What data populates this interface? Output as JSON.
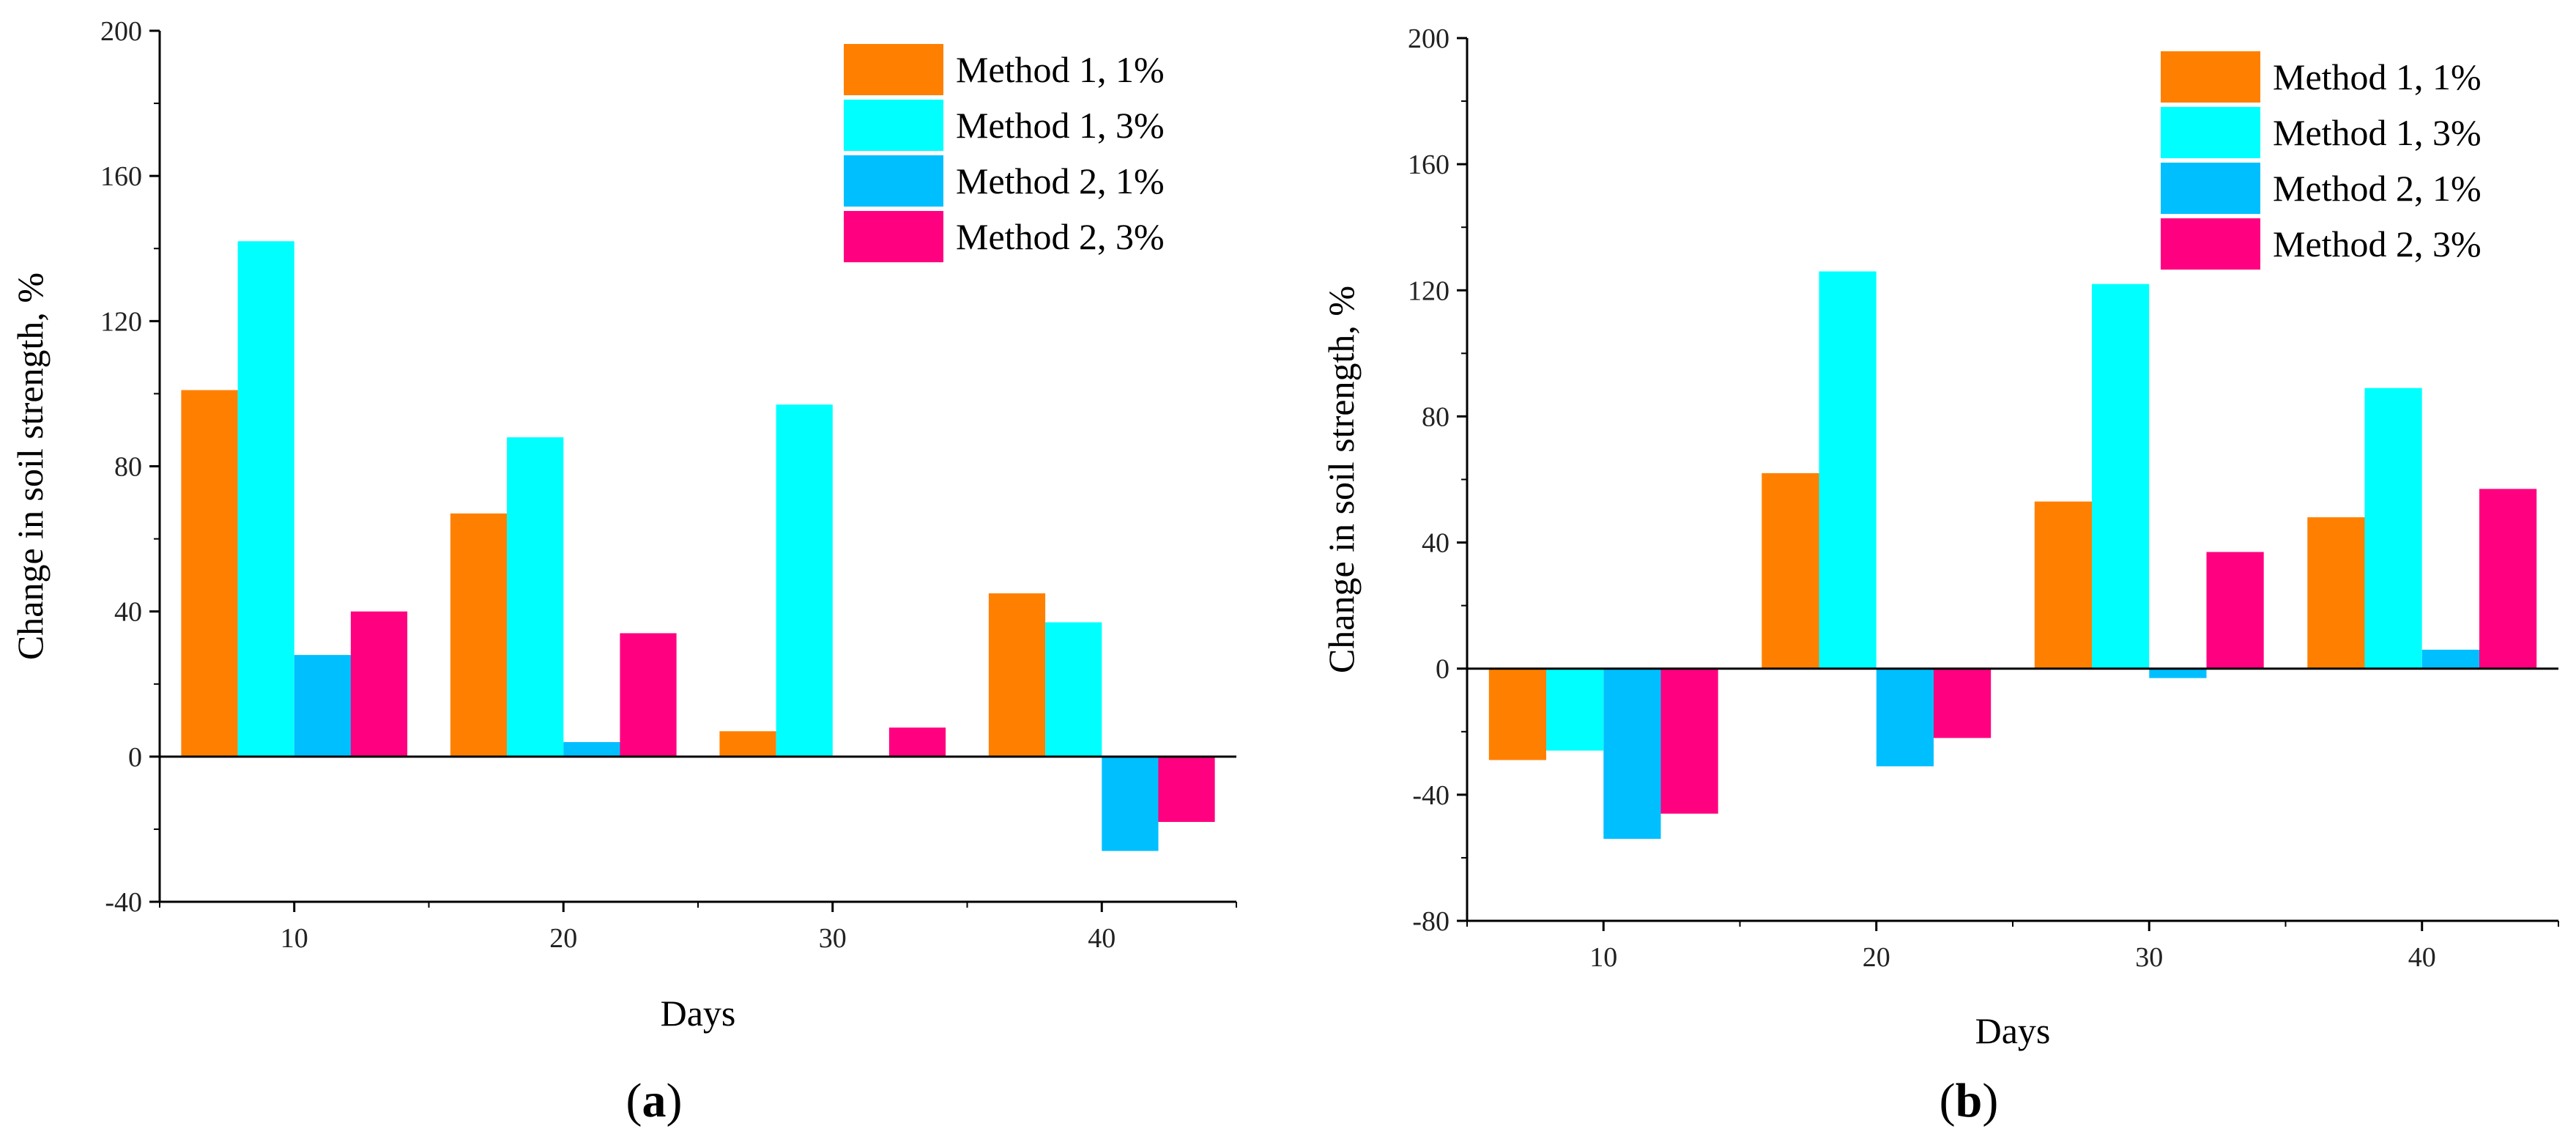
{
  "chart_data": [
    {
      "panel_label": "a",
      "type": "bar",
      "xlabel": "Days",
      "ylabel": "Change in soil strength, %",
      "categories": [
        "10",
        "20",
        "30",
        "40"
      ],
      "ylim": [
        -40,
        200
      ],
      "yticks": [
        -40,
        0,
        40,
        80,
        120,
        160,
        200
      ],
      "legend_position": "top-right",
      "series": [
        {
          "name": "Method 1, 1%",
          "color": "#FF8000",
          "values": [
            101,
            67,
            7,
            45
          ]
        },
        {
          "name": "Method 1, 3%",
          "color": "#00FFFF",
          "values": [
            142,
            88,
            97,
            37
          ]
        },
        {
          "name": "Method 2, 1%",
          "color": "#00BFFF",
          "values": [
            28,
            4,
            0,
            -26
          ]
        },
        {
          "name": "Method 2, 3%",
          "color": "#FF0080",
          "values": [
            40,
            34,
            8,
            -18
          ]
        }
      ]
    },
    {
      "panel_label": "b",
      "type": "bar",
      "xlabel": "Days",
      "ylabel": "Change in soil strength, %",
      "categories": [
        "10",
        "20",
        "30",
        "40"
      ],
      "ylim": [
        -80,
        200
      ],
      "yticks": [
        -80,
        -40,
        0,
        40,
        80,
        120,
        160,
        200
      ],
      "legend_position": "top-right",
      "series": [
        {
          "name": "Method 1, 1%",
          "color": "#FF8000",
          "values": [
            -29,
            62,
            53,
            48
          ]
        },
        {
          "name": "Method 1, 3%",
          "color": "#00FFFF",
          "values": [
            -26,
            126,
            122,
            89
          ]
        },
        {
          "name": "Method 2, 1%",
          "color": "#00BFFF",
          "values": [
            -54,
            -31,
            -3,
            6
          ]
        },
        {
          "name": "Method 2, 3%",
          "color": "#FF0080",
          "values": [
            -46,
            -22,
            37,
            57
          ]
        }
      ]
    }
  ]
}
